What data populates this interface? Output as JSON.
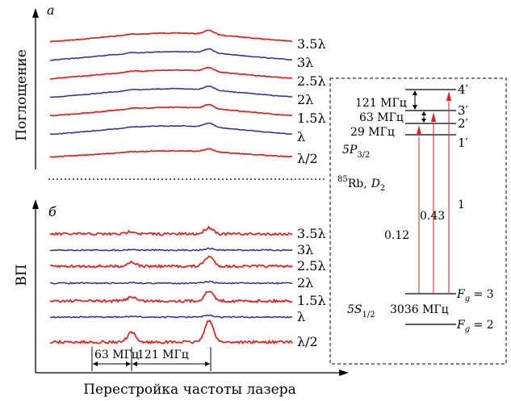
{
  "panels": {
    "a": {
      "letter": "а",
      "ylabel": "Поглощение",
      "trace_labels": [
        "3.5λ",
        "3λ",
        "2.5λ",
        "2λ",
        "1.5λ",
        "λ",
        "λ/2"
      ]
    },
    "b": {
      "letter": "б",
      "ylabel": "ВП",
      "trace_labels": [
        "3.5λ",
        "3λ",
        "2.5λ",
        "2λ",
        "1.5λ",
        "λ",
        "λ/2"
      ],
      "spacings": [
        "63 МГц",
        "121 МГц"
      ]
    }
  },
  "xlabel": "Перестройка частоты лазера",
  "colors": {
    "red": "#e0201c",
    "blue": "#2a2f9a"
  },
  "levels": {
    "upper_labels": [
      "4′",
      "3′",
      "2′",
      "1′"
    ],
    "upper_spacings": [
      "121 МГц",
      "63 МГц",
      "29 МГц"
    ],
    "upper_state": {
      "term": "5P",
      "sub": "3/2"
    },
    "atom": {
      "mass": "85",
      "element": "Rb,",
      "line": "D",
      "line_sub": "2"
    },
    "transition_strengths": [
      "0.12",
      "0.43",
      "1"
    ],
    "lower_state": {
      "term": "5S",
      "sub": "1/2"
    },
    "lower_labels": [
      {
        "f": "F",
        "sub": "g",
        "eq": " = 3"
      },
      {
        "f": "F",
        "sub": "g",
        "eq": " = 2"
      }
    ],
    "lower_spacing": "3036 МГц"
  }
}
